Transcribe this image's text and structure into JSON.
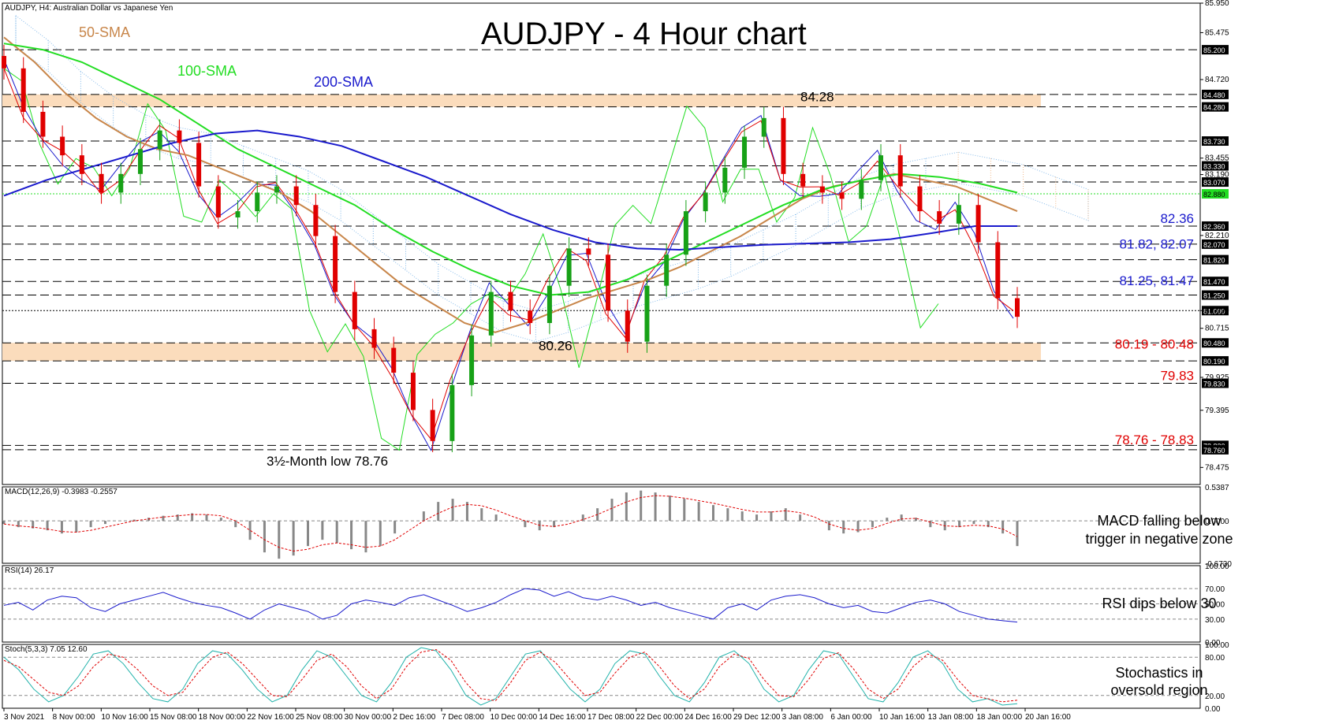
{
  "header": "AUDJPY, H4:  Australian Dollar vs Japanese Yen",
  "title": "AUDJPY - 4 Hour chart",
  "colors": {
    "bull": "#17a117",
    "bear": "#e00000",
    "sma50": "#c8864a",
    "sma100": "#22dd22",
    "sma200": "#1a1acc",
    "kijun": "#1a1acc",
    "tenkan": "#e00000",
    "chikou": "#22dd22",
    "cloud_bull": "#f0b888",
    "cloud_bear": "#7ab4e8",
    "zone": "#fbdcbc",
    "level_red": "#e00000",
    "level_blue": "#1a1acc",
    "dashed": "#000000"
  },
  "chart_data": [
    {
      "type": "line",
      "name": "main",
      "ylim": [
        78.2,
        85.95
      ],
      "y_ticks": [
        85.95,
        85.475,
        84.72,
        83.455,
        83.19,
        82.21,
        81.0,
        80.715,
        79.925,
        79.395,
        78.475
      ],
      "x_labels": [
        "3 Nov 2021",
        "8 Nov 00:00",
        "10 Nov 16:00",
        "15 Nov 08:00",
        "18 Nov 00:00",
        "22 Nov 16:00",
        "25 Nov 08:00",
        "30 Nov 00:00",
        "2 Dec 16:00",
        "7 Dec 08:00",
        "10 Dec 00:00",
        "14 Dec 16:00",
        "17 Dec 08:00",
        "22 Dec 00:00",
        "24 Dec 16:00",
        "29 Dec 12:00",
        "3 Jan 08:00",
        "6 Jan 00:00",
        "10 Jan 16:00",
        "13 Jan 08:00",
        "18 Jan 00:00",
        "20 Jan 16:00"
      ],
      "legend_labels": [
        {
          "text": "50-SMA",
          "series": "sma50"
        },
        {
          "text": "100-SMA",
          "series": "sma100"
        },
        {
          "text": "200-SMA",
          "series": "sma200"
        }
      ],
      "series": [
        {
          "key": "close",
          "values": [
            84.9,
            84.2,
            83.8,
            83.5,
            83.2,
            82.9,
            83.2,
            83.6,
            83.9,
            83.7,
            83.0,
            82.5,
            82.6,
            82.9,
            83.0,
            82.7,
            82.2,
            81.3,
            80.7,
            80.4,
            80.0,
            79.4,
            78.9,
            79.8,
            80.6,
            81.3,
            81.0,
            80.8,
            81.4,
            82.0,
            81.9,
            81.0,
            80.5,
            81.4,
            81.9,
            82.6,
            82.9,
            83.3,
            83.8,
            84.1,
            83.2,
            83.0,
            82.9,
            82.8,
            83.1,
            83.5,
            83.0,
            82.6,
            82.4,
            82.7,
            82.1,
            81.2,
            80.9
          ]
        },
        {
          "key": "sma50",
          "values": [
            85.4,
            85.0,
            84.5,
            84.1,
            83.8,
            83.6,
            83.5,
            83.3,
            83.1,
            82.9,
            82.6,
            82.2,
            81.8,
            81.4,
            81.1,
            80.8,
            80.65,
            80.8,
            81.0,
            81.2,
            81.35,
            81.5,
            81.7,
            81.95,
            82.2,
            82.5,
            82.8,
            83.0,
            83.1,
            83.2,
            83.1,
            83.0,
            82.8,
            82.6
          ]
        },
        {
          "key": "sma100",
          "values": [
            85.3,
            85.2,
            85.0,
            84.7,
            84.4,
            84.0,
            83.6,
            83.3,
            83.0,
            82.7,
            82.3,
            81.95,
            81.65,
            81.4,
            81.25,
            81.3,
            81.5,
            81.8,
            82.1,
            82.4,
            82.7,
            82.95,
            83.1,
            83.2,
            83.15,
            83.05,
            82.9
          ]
        },
        {
          "key": "sma200",
          "values": [
            82.85,
            83.1,
            83.3,
            83.5,
            83.7,
            83.85,
            83.9,
            83.8,
            83.65,
            83.4,
            83.15,
            82.85,
            82.55,
            82.3,
            82.1,
            82.0,
            81.98,
            82.02,
            82.06,
            82.08,
            82.1,
            82.15,
            82.25,
            82.36,
            82.36
          ]
        }
      ],
      "levels": [
        {
          "value": 85.2,
          "label": "85.200"
        },
        {
          "value": 84.48,
          "label": "84.480"
        },
        {
          "value": 84.28,
          "label": "84.280"
        },
        {
          "value": 83.73,
          "label": "83.730"
        },
        {
          "value": 83.33,
          "label": "83.330"
        },
        {
          "value": 83.07,
          "label": "83.070"
        },
        {
          "value": 82.36,
          "label": "82.360"
        },
        {
          "value": 82.07,
          "label": "82.070"
        },
        {
          "value": 81.82,
          "label": "81.820"
        },
        {
          "value": 81.47,
          "label": "81.470"
        },
        {
          "value": 81.25,
          "label": "81.250"
        },
        {
          "value": 81.0,
          "label": "81.000"
        },
        {
          "value": 80.48,
          "label": "80.480"
        },
        {
          "value": 80.19,
          "label": "80.190"
        },
        {
          "value": 79.83,
          "label": "79.830"
        },
        {
          "value": 78.83,
          "label": "78.830"
        },
        {
          "value": 78.76,
          "label": "78.760"
        }
      ],
      "current_price": {
        "value": 82.88,
        "label": "82.880"
      },
      "zones": [
        [
          84.28,
          84.48
        ],
        [
          80.19,
          80.48
        ]
      ],
      "right_labels": [
        {
          "text": "82.36",
          "color": "blue",
          "value": 82.36
        },
        {
          "text": "81.82, 82.07",
          "color": "blue",
          "value": 81.95
        },
        {
          "text": "81.25, 81.47",
          "color": "blue",
          "value": 81.36
        },
        {
          "text": "80.19 - 80.48",
          "color": "red",
          "value": 80.34
        },
        {
          "text": "79.83",
          "color": "red",
          "value": 79.83
        },
        {
          "text": "78.76 - 78.83",
          "color": "red",
          "value": 78.795
        }
      ],
      "annotations": [
        {
          "text": "84.28",
          "value": 84.28
        },
        {
          "text": "80.26",
          "value": 80.26
        },
        {
          "text": "3½-Month low 78.76",
          "value": 78.76
        }
      ]
    },
    {
      "type": "bar",
      "name": "macd",
      "label": "MACD(12,26,9) -0.3983 -0.2557",
      "ylim": [
        -0.673,
        0.5387
      ],
      "ticks": [
        "0.5387",
        "0.0000",
        "-0.6730"
      ],
      "histogram": [
        -0.05,
        -0.1,
        -0.12,
        -0.15,
        -0.2,
        -0.18,
        -0.1,
        -0.05,
        0.0,
        0.02,
        0.05,
        0.08,
        0.1,
        0.12,
        0.1,
        0.05,
        -0.1,
        -0.3,
        -0.5,
        -0.6,
        -0.55,
        -0.4,
        -0.3,
        -0.35,
        -0.45,
        -0.5,
        -0.4,
        -0.2,
        0.0,
        0.15,
        0.3,
        0.35,
        0.3,
        0.2,
        0.1,
        0.0,
        -0.1,
        -0.15,
        -0.1,
        0.0,
        0.1,
        0.2,
        0.35,
        0.45,
        0.48,
        0.45,
        0.4,
        0.35,
        0.3,
        0.25,
        0.2,
        0.15,
        0.1,
        0.15,
        0.2,
        0.1,
        0.0,
        -0.15,
        -0.2,
        -0.18,
        -0.1,
        0.05,
        0.1,
        0.05,
        -0.1,
        -0.15,
        -0.1,
        -0.05,
        -0.1,
        -0.2,
        -0.4
      ],
      "signal": [
        -0.05,
        -0.08,
        -0.1,
        -0.13,
        -0.17,
        -0.18,
        -0.15,
        -0.1,
        -0.05,
        0.0,
        0.03,
        0.06,
        0.08,
        0.1,
        0.1,
        0.08,
        0.0,
        -0.15,
        -0.3,
        -0.42,
        -0.48,
        -0.45,
        -0.38,
        -0.35,
        -0.38,
        -0.42,
        -0.4,
        -0.3,
        -0.15,
        0.0,
        0.12,
        0.22,
        0.26,
        0.24,
        0.17,
        0.08,
        0.0,
        -0.07,
        -0.09,
        -0.05,
        0.02,
        0.1,
        0.2,
        0.3,
        0.37,
        0.4,
        0.39,
        0.36,
        0.32,
        0.28,
        0.23,
        0.18,
        0.14,
        0.14,
        0.16,
        0.13,
        0.06,
        -0.05,
        -0.12,
        -0.15,
        -0.12,
        -0.04,
        0.03,
        0.04,
        -0.02,
        -0.08,
        -0.09,
        -0.07,
        -0.08,
        -0.13,
        -0.25
      ],
      "note": [
        "MACD falling below",
        "trigger in negative zone"
      ]
    },
    {
      "type": "line",
      "name": "rsi",
      "label": "RSI(14) 26.17",
      "ylim": [
        0,
        100
      ],
      "ticks": [
        "100.00",
        "70.00",
        "50.00",
        "30.00",
        "0.00"
      ],
      "levels": [
        70,
        50,
        30
      ],
      "values": [
        48,
        52,
        42,
        55,
        60,
        58,
        45,
        40,
        50,
        55,
        60,
        65,
        58,
        52,
        48,
        45,
        38,
        30,
        42,
        50,
        45,
        40,
        30,
        35,
        50,
        55,
        52,
        48,
        58,
        62,
        55,
        48,
        40,
        45,
        52,
        62,
        70,
        68,
        60,
        66,
        58,
        55,
        60,
        55,
        48,
        52,
        45,
        40,
        35,
        30,
        45,
        50,
        42,
        55,
        60,
        62,
        58,
        50,
        45,
        48,
        40,
        38,
        45,
        52,
        55,
        50,
        40,
        35,
        30,
        28,
        26.17
      ],
      "note": "RSI dips below 30"
    },
    {
      "type": "line",
      "name": "stochastic",
      "label": "Stoch(5,3,3) 7.05 12.60",
      "ylim": [
        0,
        100
      ],
      "ticks": [
        "100.00",
        "80.00",
        "20.00",
        "0.00"
      ],
      "levels": [
        80,
        20
      ],
      "k": [
        80,
        60,
        30,
        10,
        20,
        50,
        85,
        90,
        70,
        40,
        15,
        10,
        30,
        70,
        90,
        85,
        60,
        30,
        10,
        20,
        60,
        90,
        80,
        50,
        20,
        10,
        40,
        80,
        95,
        90,
        60,
        20,
        5,
        15,
        50,
        85,
        90,
        60,
        30,
        10,
        30,
        70,
        90,
        85,
        50,
        20,
        10,
        40,
        80,
        90,
        70,
        30,
        10,
        20,
        60,
        90,
        85,
        50,
        15,
        10,
        40,
        80,
        90,
        70,
        30,
        10,
        15,
        5,
        7.05
      ],
      "d": [
        75,
        65,
        45,
        25,
        20,
        35,
        65,
        85,
        80,
        60,
        35,
        20,
        25,
        55,
        80,
        88,
        70,
        45,
        20,
        18,
        45,
        75,
        85,
        65,
        35,
        15,
        30,
        65,
        88,
        92,
        75,
        40,
        15,
        12,
        40,
        75,
        88,
        72,
        45,
        20,
        25,
        55,
        80,
        88,
        65,
        35,
        15,
        30,
        65,
        85,
        78,
        45,
        20,
        18,
        45,
        78,
        87,
        62,
        30,
        15,
        30,
        65,
        85,
        75,
        45,
        20,
        15,
        10,
        12.6
      ],
      "note": [
        "Stochastics in",
        "oversold region"
      ]
    }
  ]
}
